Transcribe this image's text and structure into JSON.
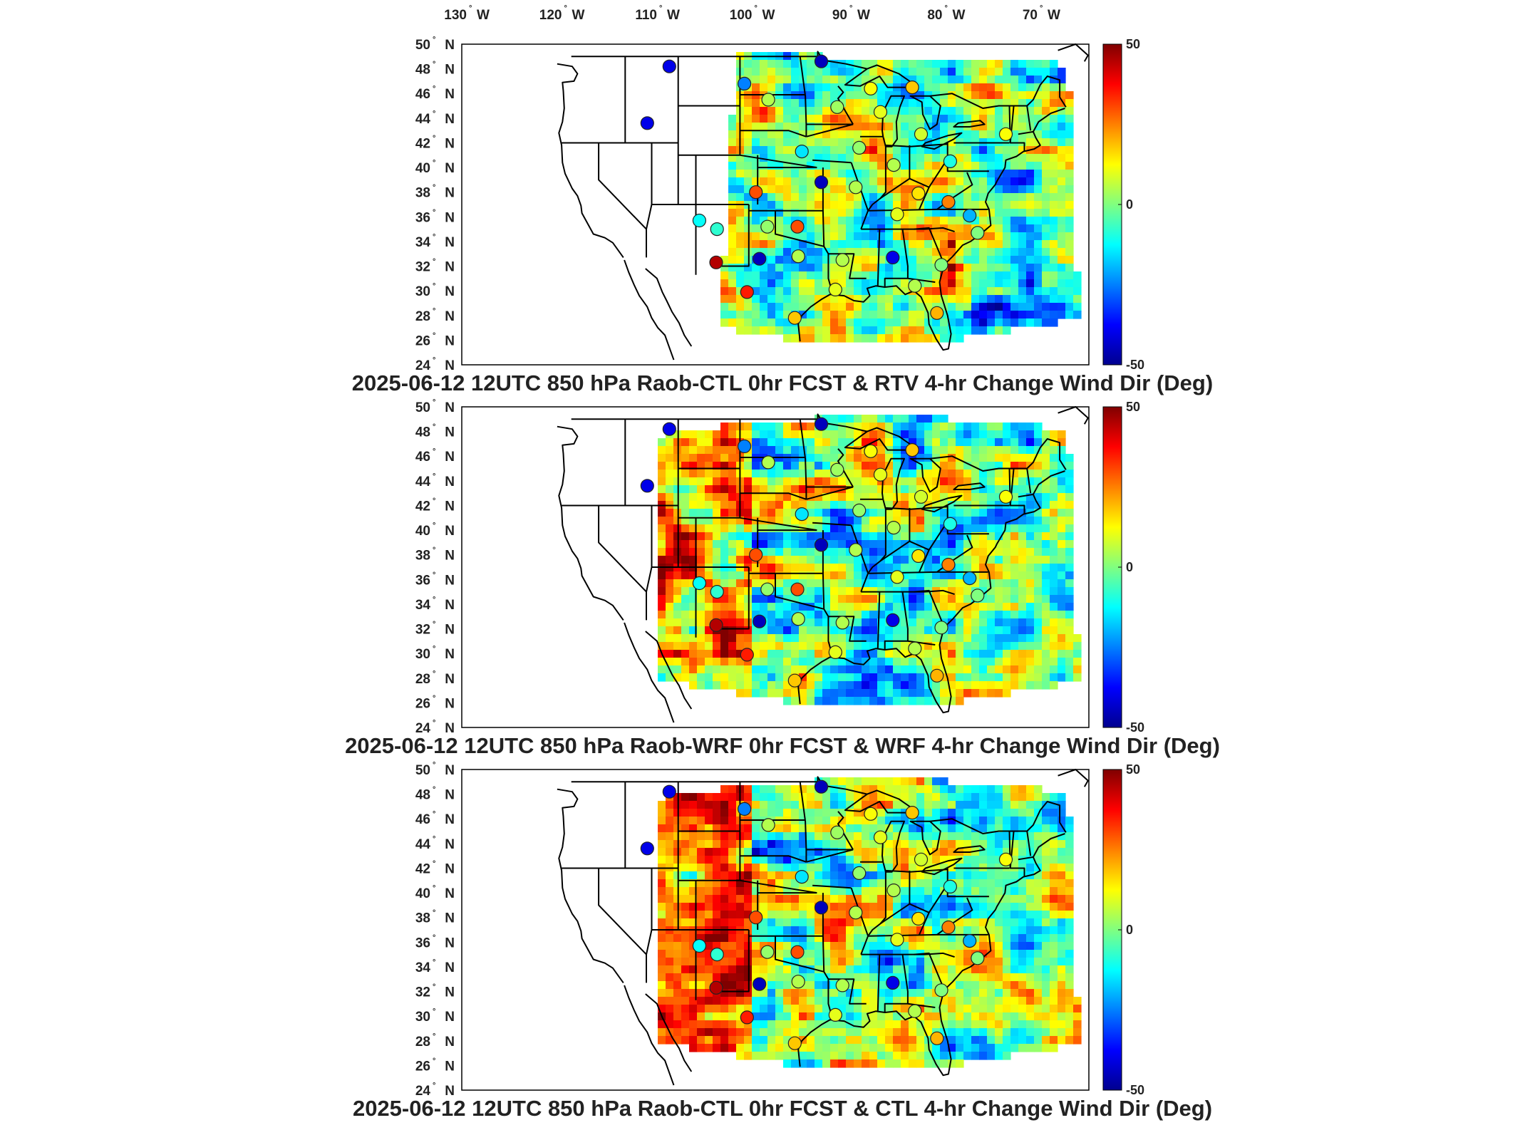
{
  "lon_labels": [
    {
      "value": "130",
      "hemisphere": "W"
    },
    {
      "value": "120",
      "hemisphere": "W"
    },
    {
      "value": "110",
      "hemisphere": "W"
    },
    {
      "value": "100",
      "hemisphere": "W"
    },
    {
      "value": "90",
      "hemisphere": "W"
    },
    {
      "value": "80",
      "hemisphere": "W"
    },
    {
      "value": "70",
      "hemisphere": "W"
    }
  ],
  "lat_labels": [
    "50",
    "48",
    "46",
    "44",
    "42",
    "40",
    "38",
    "36",
    "34",
    "32",
    "30",
    "28",
    "26",
    "24"
  ],
  "lat_hemisphere": "N",
  "degree_symbol": "°",
  "colorbar": {
    "labels": [
      "50",
      "0",
      "-50"
    ],
    "colormap": [
      "#00008f",
      "#0000ff",
      "#0080ff",
      "#00ffff",
      "#80ff80",
      "#ffff00",
      "#ff8000",
      "#ff0000",
      "#800000"
    ]
  },
  "panels": [
    {
      "title": "2025-06-12 12UTC 850 hPa Raob-CTL 0hr FCST & RTV 4-hr Change Wind Dir (Deg)",
      "field": "RTV",
      "seed": 11
    },
    {
      "title": "2025-06-12 12UTC 850 hPa Raob-WRF 0hr FCST & WRF 4-hr Change Wind Dir (Deg)",
      "field": "WRF",
      "seed": 23
    },
    {
      "title": "2025-06-12 12UTC 850 hPa Raob-CTL 0hr FCST & CTL 4-hr Change Wind Dir (Deg)",
      "field": "CTL",
      "seed": 37
    }
  ],
  "raob_stations": [
    {
      "lon": -112.0,
      "lat": 48.2,
      "value": -40
    },
    {
      "lon": -103.5,
      "lat": 46.8,
      "value": -25
    },
    {
      "lon": -100.8,
      "lat": 45.5,
      "value": 5
    },
    {
      "lon": -94.8,
      "lat": 48.6,
      "value": -45
    },
    {
      "lon": -93.0,
      "lat": 44.9,
      "value": 3
    },
    {
      "lon": -89.2,
      "lat": 46.4,
      "value": 12
    },
    {
      "lon": -84.5,
      "lat": 46.5,
      "value": 18
    },
    {
      "lon": -83.5,
      "lat": 42.7,
      "value": 8
    },
    {
      "lon": -88.1,
      "lat": 44.5,
      "value": 10
    },
    {
      "lon": -114.5,
      "lat": 43.6,
      "value": -40
    },
    {
      "lon": -97.0,
      "lat": 41.3,
      "value": -15
    },
    {
      "lon": -90.5,
      "lat": 41.6,
      "value": 2
    },
    {
      "lon": -86.6,
      "lat": 40.2,
      "value": 5
    },
    {
      "lon": -80.2,
      "lat": 40.5,
      "value": -10
    },
    {
      "lon": -73.9,
      "lat": 42.7,
      "value": 12
    },
    {
      "lon": -94.8,
      "lat": 38.8,
      "value": -45
    },
    {
      "lon": -102.2,
      "lat": 38.0,
      "value": 30
    },
    {
      "lon": -90.9,
      "lat": 38.4,
      "value": 5
    },
    {
      "lon": -83.8,
      "lat": 37.9,
      "value": 15
    },
    {
      "lon": -86.2,
      "lat": 36.2,
      "value": 10
    },
    {
      "lon": -80.4,
      "lat": 37.2,
      "value": 25
    },
    {
      "lon": -78.0,
      "lat": 36.1,
      "value": -20
    },
    {
      "lon": -77.1,
      "lat": 34.7,
      "value": 0
    },
    {
      "lon": -100.9,
      "lat": 35.2,
      "value": 2
    },
    {
      "lon": -97.5,
      "lat": 35.2,
      "value": 30
    },
    {
      "lon": -106.6,
      "lat": 35.0,
      "value": -8
    },
    {
      "lon": -101.8,
      "lat": 32.6,
      "value": -45
    },
    {
      "lon": -97.4,
      "lat": 32.8,
      "value": 5
    },
    {
      "lon": -92.4,
      "lat": 32.5,
      "value": 5
    },
    {
      "lon": -86.7,
      "lat": 32.7,
      "value": -40
    },
    {
      "lon": -81.2,
      "lat": 32.1,
      "value": 0
    },
    {
      "lon": -106.7,
      "lat": 32.3,
      "value": 45
    },
    {
      "lon": -103.2,
      "lat": 29.9,
      "value": 35
    },
    {
      "lon": -97.8,
      "lat": 27.8,
      "value": 18
    },
    {
      "lon": -93.2,
      "lat": 30.1,
      "value": 10
    },
    {
      "lon": -84.2,
      "lat": 30.4,
      "value": 5
    },
    {
      "lon": -81.7,
      "lat": 28.2,
      "value": 20
    },
    {
      "lon": -108.6,
      "lat": 35.7,
      "value": -12
    }
  ]
}
